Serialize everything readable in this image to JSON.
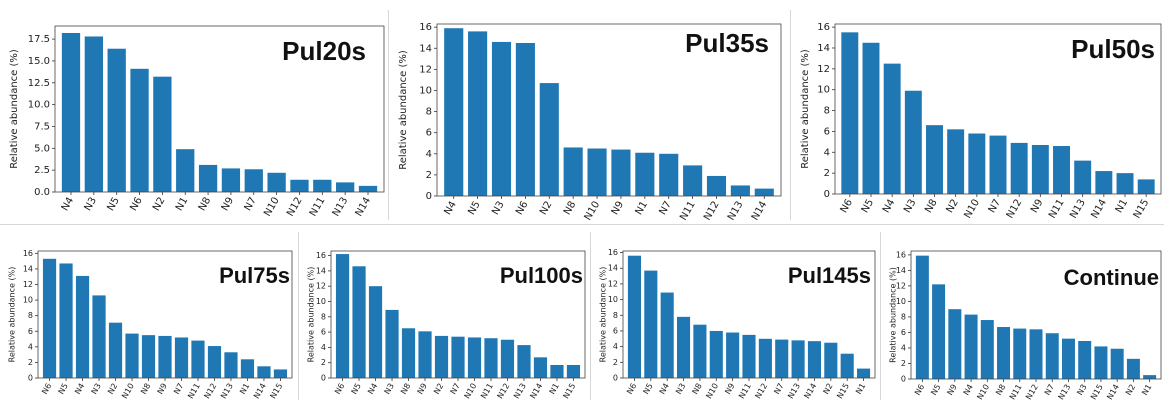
{
  "chart_data": [
    {
      "type": "bar",
      "title": "Pul20s",
      "ylabel": "Relative abundance (%)",
      "ylim": [
        0,
        19
      ],
      "yticks": [
        "0.0",
        "2.5",
        "5.0",
        "7.5",
        "10.0",
        "12.5",
        "15.0",
        "17.5"
      ],
      "ytick_values": [
        0,
        2.5,
        5,
        7.5,
        10,
        12.5,
        15,
        17.5
      ],
      "categories": [
        "N4",
        "N3",
        "N5",
        "N6",
        "N2",
        "N1",
        "N8",
        "N9",
        "N7",
        "N10",
        "N12",
        "N11",
        "N13",
        "N14"
      ],
      "values": [
        18.2,
        17.8,
        16.4,
        14.1,
        13.2,
        4.9,
        3.1,
        2.7,
        2.6,
        2.2,
        1.4,
        1.4,
        1.1,
        0.7
      ],
      "color": "#1f77b4"
    },
    {
      "type": "bar",
      "title": "Pul35s",
      "ylabel": "Relative abundance (%)",
      "ylim": [
        0,
        16.3
      ],
      "yticks": [
        "0",
        "2",
        "4",
        "6",
        "8",
        "10",
        "12",
        "14",
        "16"
      ],
      "ytick_values": [
        0,
        2,
        4,
        6,
        8,
        10,
        12,
        14,
        16
      ],
      "categories": [
        "N4",
        "N5",
        "N3",
        "N6",
        "N2",
        "N8",
        "N10",
        "N9",
        "N1",
        "N7",
        "N11",
        "N12",
        "N13",
        "N14"
      ],
      "values": [
        15.9,
        15.6,
        14.6,
        14.5,
        10.7,
        4.6,
        4.5,
        4.4,
        4.1,
        4.0,
        2.9,
        1.9,
        1.0,
        0.7
      ],
      "color": "#1f77b4"
    },
    {
      "type": "bar",
      "title": "Pul50s",
      "ylabel": "Relative abundance (%)",
      "ylim": [
        0,
        16.3
      ],
      "yticks": [
        "0",
        "2",
        "4",
        "6",
        "8",
        "10",
        "12",
        "14",
        "16"
      ],
      "ytick_values": [
        0,
        2,
        4,
        6,
        8,
        10,
        12,
        14,
        16
      ],
      "categories": [
        "N6",
        "N5",
        "N4",
        "N3",
        "N8",
        "N2",
        "N10",
        "N7",
        "N12",
        "N9",
        "N11",
        "N13",
        "N14",
        "N1",
        "N15"
      ],
      "values": [
        15.5,
        14.5,
        12.5,
        9.9,
        6.6,
        6.2,
        5.8,
        5.6,
        4.9,
        4.7,
        4.6,
        3.2,
        2.2,
        2.0,
        1.4
      ],
      "color": "#1f77b4"
    },
    {
      "type": "bar",
      "title": "Pul75s",
      "ylabel": "Relative abundance (%)",
      "ylim": [
        0,
        16.3
      ],
      "yticks": [
        "0",
        "2",
        "4",
        "6",
        "8",
        "10",
        "12",
        "14",
        "16"
      ],
      "ytick_values": [
        0,
        2,
        4,
        6,
        8,
        10,
        12,
        14,
        16
      ],
      "categories": [
        "N6",
        "N5",
        "N4",
        "N3",
        "N2",
        "N10",
        "N8",
        "N9",
        "N7",
        "N11",
        "N12",
        "N13",
        "N1",
        "N14",
        "N15"
      ],
      "values": [
        15.3,
        14.7,
        13.1,
        10.6,
        7.1,
        5.7,
        5.5,
        5.4,
        5.2,
        4.8,
        4.1,
        3.3,
        2.4,
        1.5,
        1.1
      ],
      "color": "#1f77b4"
    },
    {
      "type": "bar",
      "title": "Pul100s",
      "ylabel": "Relative abundance (%)",
      "ylim": [
        0,
        16.6
      ],
      "yticks": [
        "0",
        "2",
        "4",
        "6",
        "8",
        "10",
        "12",
        "14",
        "16"
      ],
      "ytick_values": [
        0,
        2,
        4,
        6,
        8,
        10,
        12,
        14,
        16
      ],
      "categories": [
        "N6",
        "N5",
        "N4",
        "N3",
        "N8",
        "N9",
        "N2",
        "N7",
        "N10",
        "N11",
        "N12",
        "N13",
        "N14",
        "N1",
        "N15"
      ],
      "values": [
        16.2,
        14.6,
        12.0,
        8.9,
        6.5,
        6.1,
        5.5,
        5.4,
        5.3,
        5.2,
        5.0,
        4.3,
        2.7,
        1.7,
        1.7
      ],
      "color": "#1f77b4"
    },
    {
      "type": "bar",
      "title": "Pul145s",
      "ylabel": "Relative abundance (%)",
      "ylim": [
        0,
        16.2
      ],
      "yticks": [
        "0",
        "2",
        "4",
        "6",
        "8",
        "10",
        "12",
        "14",
        "16"
      ],
      "ytick_values": [
        0,
        2,
        4,
        6,
        8,
        10,
        12,
        14,
        16
      ],
      "categories": [
        "N6",
        "N5",
        "N4",
        "N3",
        "N8",
        "N10",
        "N9",
        "N11",
        "N12",
        "N7",
        "N13",
        "N14",
        "N2",
        "N15",
        "N1"
      ],
      "values": [
        15.6,
        13.7,
        10.9,
        7.8,
        6.8,
        6.0,
        5.8,
        5.5,
        5.0,
        4.9,
        4.8,
        4.7,
        4.5,
        3.1,
        1.2
      ],
      "color": "#1f77b4"
    },
    {
      "type": "bar",
      "title": "Continue",
      "ylabel": "Relative abundance (%)",
      "ylim": [
        0,
        16.5
      ],
      "yticks": [
        "0",
        "2",
        "4",
        "6",
        "8",
        "10",
        "12",
        "14",
        "16"
      ],
      "ytick_values": [
        0,
        2,
        4,
        6,
        8,
        10,
        12,
        14,
        16
      ],
      "categories": [
        "N6",
        "N5",
        "N9",
        "N4",
        "N10",
        "N8",
        "N11",
        "N12",
        "N7",
        "N13",
        "N3",
        "N15",
        "N14",
        "N2",
        "N1"
      ],
      "values": [
        15.9,
        12.2,
        9.0,
        8.3,
        7.6,
        6.7,
        6.5,
        6.4,
        5.9,
        5.2,
        4.9,
        4.2,
        3.9,
        2.6,
        0.5
      ],
      "color": "#1f77b4"
    }
  ]
}
